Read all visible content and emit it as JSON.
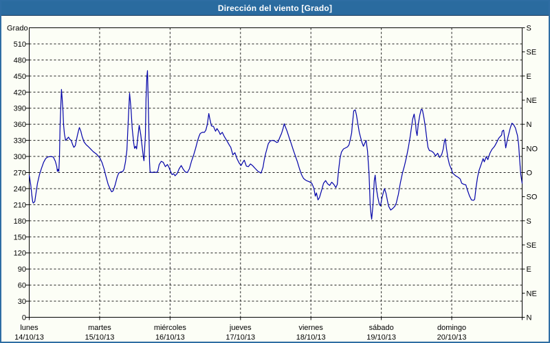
{
  "window": {
    "title": "Dirección del viento [Grado]"
  },
  "colors": {
    "titlebar_bg": "#2a6b9f",
    "titlebar_border": "#16395a",
    "window_border": "#2e6da3",
    "background": "#fcfef6",
    "line": "#0000a8",
    "grid": "#1c1c1c",
    "frame": "#000000",
    "text": "#000000",
    "title_text": "#ffffff"
  },
  "chart_data": {
    "type": "line",
    "title": "Dirección del viento [Grado]",
    "grid": "dashed",
    "y_axis_left": {
      "title": "Grado",
      "min": 0,
      "max": 540,
      "tick_step": 30,
      "highest_label": 510
    },
    "y_axis_right": {
      "tick_step": 45,
      "labels_top_to_bottom": [
        "S",
        "SE",
        "E",
        "NE",
        "N",
        "NO",
        "O",
        "SO",
        "S",
        "SE",
        "E",
        "NE",
        "N"
      ]
    },
    "x_axis": {
      "hours_total": 168,
      "hours_per_day": 24,
      "days": [
        {
          "name": "lunes",
          "date": "14/10/13"
        },
        {
          "name": "martes",
          "date": "15/10/13"
        },
        {
          "name": "miércoles",
          "date": "16/10/13"
        },
        {
          "name": "jueves",
          "date": "17/10/13"
        },
        {
          "name": "viernes",
          "date": "18/10/13"
        },
        {
          "name": "sábado",
          "date": "19/10/13"
        },
        {
          "name": "domingo",
          "date": "20/10/13"
        }
      ]
    },
    "series": [
      {
        "name": "Dirección del viento",
        "unit": "Grado",
        "color": "#0000a8",
        "points": [
          [
            0,
            265
          ],
          [
            0.5,
            248
          ],
          [
            0.9,
            228
          ],
          [
            1.2,
            215
          ],
          [
            1.4,
            213
          ],
          [
            1.9,
            216
          ],
          [
            2.1,
            224
          ],
          [
            2.8,
            250
          ],
          [
            3.5,
            266
          ],
          [
            4.2,
            278
          ],
          [
            4.9,
            289
          ],
          [
            5.6,
            296
          ],
          [
            6.3,
            299
          ],
          [
            7.3,
            300
          ],
          [
            8.2,
            299
          ],
          [
            8.9,
            291
          ],
          [
            9.4,
            281
          ],
          [
            9.6,
            272
          ],
          [
            9.8,
            276
          ],
          [
            10.1,
            272
          ],
          [
            10.3,
            300
          ],
          [
            10.5,
            352
          ],
          [
            10.8,
            400
          ],
          [
            11,
            425
          ],
          [
            11.2,
            410
          ],
          [
            11.5,
            385
          ],
          [
            11.7,
            360
          ],
          [
            12,
            342
          ],
          [
            12.4,
            330
          ],
          [
            12.9,
            333
          ],
          [
            13.4,
            336
          ],
          [
            13.8,
            332
          ],
          [
            14.3,
            330
          ],
          [
            14.8,
            322
          ],
          [
            15.2,
            317
          ],
          [
            15.7,
            320
          ],
          [
            16.4,
            339
          ],
          [
            16.9,
            350
          ],
          [
            17.1,
            354
          ],
          [
            17.6,
            347
          ],
          [
            18,
            338
          ],
          [
            18.7,
            327
          ],
          [
            19.4,
            322
          ],
          [
            20.2,
            318
          ],
          [
            20.9,
            314
          ],
          [
            21.8,
            309
          ],
          [
            23,
            304
          ],
          [
            24.1,
            297
          ],
          [
            24.8,
            289
          ],
          [
            25.5,
            277
          ],
          [
            26.2,
            262
          ],
          [
            26.9,
            248
          ],
          [
            27.7,
            238
          ],
          [
            28.1,
            234
          ],
          [
            28.6,
            236
          ],
          [
            29.3,
            247
          ],
          [
            30,
            262
          ],
          [
            30.5,
            269
          ],
          [
            31.2,
            271
          ],
          [
            31.9,
            272
          ],
          [
            32.3,
            276
          ],
          [
            32.8,
            290
          ],
          [
            33.3,
            312
          ],
          [
            33.7,
            360
          ],
          [
            34,
            395
          ],
          [
            34.2,
            418
          ],
          [
            34.7,
            388
          ],
          [
            35.1,
            352
          ],
          [
            35.6,
            326
          ],
          [
            35.9,
            315
          ],
          [
            36.3,
            319
          ],
          [
            36.6,
            314
          ],
          [
            37,
            335
          ],
          [
            37.3,
            350
          ],
          [
            37.5,
            358
          ],
          [
            38,
            341
          ],
          [
            38.4,
            322
          ],
          [
            38.9,
            299
          ],
          [
            39.1,
            292
          ],
          [
            39.6,
            340
          ],
          [
            39.8,
            408
          ],
          [
            40.1,
            448
          ],
          [
            40.3,
            460
          ],
          [
            40.5,
            420
          ],
          [
            40.8,
            345
          ],
          [
            41,
            290
          ],
          [
            41.2,
            271
          ],
          [
            41.9,
            270
          ],
          [
            42.6,
            271
          ],
          [
            43.3,
            270
          ],
          [
            43.8,
            272
          ],
          [
            44.3,
            285
          ],
          [
            45,
            291
          ],
          [
            45.7,
            289
          ],
          [
            46.4,
            281
          ],
          [
            47.1,
            285
          ],
          [
            47.6,
            280
          ],
          [
            48,
            274
          ],
          [
            48.7,
            266
          ],
          [
            49.2,
            268
          ],
          [
            49.7,
            264
          ],
          [
            50.4,
            268
          ],
          [
            51.1,
            277
          ],
          [
            51.8,
            283
          ],
          [
            52.5,
            276
          ],
          [
            53.2,
            271
          ],
          [
            53.9,
            270
          ],
          [
            54.6,
            277
          ],
          [
            55.3,
            291
          ],
          [
            56,
            302
          ],
          [
            56.7,
            315
          ],
          [
            57.4,
            330
          ],
          [
            57.9,
            338
          ],
          [
            58.3,
            343
          ],
          [
            59,
            345
          ],
          [
            59.7,
            345
          ],
          [
            60.2,
            349
          ],
          [
            60.7,
            360
          ],
          [
            61.2,
            380
          ],
          [
            61.6,
            369
          ],
          [
            62.1,
            357
          ],
          [
            62.8,
            356
          ],
          [
            63.5,
            347
          ],
          [
            64,
            352
          ],
          [
            64.7,
            346
          ],
          [
            65.1,
            341
          ],
          [
            65.8,
            345
          ],
          [
            66.5,
            337
          ],
          [
            67.5,
            328
          ],
          [
            68.2,
            321
          ],
          [
            68.7,
            317
          ],
          [
            69.4,
            303
          ],
          [
            70.1,
            307
          ],
          [
            70.8,
            296
          ],
          [
            71.5,
            288
          ],
          [
            72.2,
            283
          ],
          [
            72.9,
            290
          ],
          [
            73.3,
            293
          ],
          [
            74,
            282
          ],
          [
            74.7,
            281
          ],
          [
            75.4,
            286
          ],
          [
            76.1,
            283
          ],
          [
            77.1,
            277
          ],
          [
            78,
            272
          ],
          [
            79,
            269
          ],
          [
            79.7,
            280
          ],
          [
            80.1,
            294
          ],
          [
            80.6,
            306
          ],
          [
            81.1,
            316
          ],
          [
            81.5,
            324
          ],
          [
            82.2,
            329
          ],
          [
            82.9,
            330
          ],
          [
            83.6,
            329
          ],
          [
            84.4,
            326
          ],
          [
            84.8,
            327
          ],
          [
            85.3,
            334
          ],
          [
            86,
            343
          ],
          [
            86.5,
            352
          ],
          [
            86.9,
            361
          ],
          [
            87.4,
            354
          ],
          [
            87.9,
            347
          ],
          [
            88.6,
            335
          ],
          [
            89.3,
            324
          ],
          [
            90,
            312
          ],
          [
            90.7,
            301
          ],
          [
            91.4,
            290
          ],
          [
            92.1,
            277
          ],
          [
            92.8,
            266
          ],
          [
            93.5,
            259
          ],
          [
            94.4,
            255
          ],
          [
            95.4,
            253
          ],
          [
            96.3,
            250
          ],
          [
            97,
            241
          ],
          [
            97.5,
            226
          ],
          [
            97.9,
            232
          ],
          [
            98.4,
            219
          ],
          [
            98.9,
            223
          ],
          [
            99.6,
            236
          ],
          [
            100.3,
            250
          ],
          [
            101,
            255
          ],
          [
            101.7,
            249
          ],
          [
            102.4,
            246
          ],
          [
            103.1,
            252
          ],
          [
            103.8,
            248
          ],
          [
            104.5,
            242
          ],
          [
            105,
            248
          ],
          [
            105.4,
            272
          ],
          [
            105.9,
            296
          ],
          [
            106.4,
            308
          ],
          [
            107.1,
            314
          ],
          [
            107.8,
            316
          ],
          [
            108.5,
            318
          ],
          [
            109,
            322
          ],
          [
            109.4,
            331
          ],
          [
            109.9,
            344
          ],
          [
            110.1,
            358
          ],
          [
            110.4,
            374
          ],
          [
            110.6,
            385
          ],
          [
            111.1,
            387
          ],
          [
            111.5,
            378
          ],
          [
            112,
            361
          ],
          [
            112.5,
            345
          ],
          [
            113,
            334
          ],
          [
            113.4,
            326
          ],
          [
            113.9,
            319
          ],
          [
            114.4,
            325
          ],
          [
            114.8,
            330
          ],
          [
            115.3,
            310
          ],
          [
            115.5,
            294
          ],
          [
            115.8,
            270
          ],
          [
            116,
            240
          ],
          [
            116.2,
            210
          ],
          [
            116.5,
            192
          ],
          [
            116.7,
            183
          ],
          [
            117.2,
            212
          ],
          [
            117.6,
            255
          ],
          [
            117.9,
            265
          ],
          [
            118.3,
            241
          ],
          [
            118.8,
            224
          ],
          [
            119.3,
            211
          ],
          [
            119.7,
            208
          ],
          [
            120.2,
            222
          ],
          [
            120.7,
            233
          ],
          [
            121.1,
            240
          ],
          [
            121.6,
            231
          ],
          [
            122.1,
            217
          ],
          [
            122.5,
            207
          ],
          [
            123.2,
            200
          ],
          [
            123.9,
            203
          ],
          [
            124.6,
            207
          ],
          [
            125.1,
            213
          ],
          [
            125.8,
            229
          ],
          [
            126.5,
            251
          ],
          [
            127.2,
            269
          ],
          [
            127.9,
            283
          ],
          [
            128.6,
            299
          ],
          [
            129.3,
            319
          ],
          [
            129.8,
            336
          ],
          [
            130.3,
            355
          ],
          [
            130.7,
            370
          ],
          [
            131.2,
            379
          ],
          [
            131.7,
            360
          ],
          [
            131.9,
            347
          ],
          [
            132.2,
            339
          ],
          [
            132.6,
            360
          ],
          [
            133.1,
            377
          ],
          [
            133.6,
            388
          ],
          [
            134,
            387
          ],
          [
            134.5,
            373
          ],
          [
            135,
            355
          ],
          [
            135.4,
            337
          ],
          [
            135.9,
            317
          ],
          [
            136.4,
            311
          ],
          [
            137.1,
            310
          ],
          [
            137.8,
            307
          ],
          [
            138.5,
            301
          ],
          [
            139.2,
            306
          ],
          [
            139.9,
            298
          ],
          [
            140.6,
            304
          ],
          [
            141.1,
            314
          ],
          [
            141.5,
            328
          ],
          [
            141.8,
            333
          ],
          [
            142.2,
            315
          ],
          [
            142.7,
            297
          ],
          [
            143.2,
            285
          ],
          [
            143.9,
            276
          ],
          [
            144.3,
            269
          ],
          [
            145.3,
            264
          ],
          [
            146.2,
            261
          ],
          [
            146.9,
            258
          ],
          [
            147.4,
            250
          ],
          [
            148.1,
            248
          ],
          [
            148.8,
            247
          ],
          [
            149.3,
            238
          ],
          [
            150,
            227
          ],
          [
            150.7,
            219
          ],
          [
            151.4,
            218
          ],
          [
            151.8,
            220
          ],
          [
            152.3,
            243
          ],
          [
            152.8,
            261
          ],
          [
            153.3,
            274
          ],
          [
            154,
            285
          ],
          [
            154.7,
            296
          ],
          [
            155.1,
            290
          ],
          [
            155.8,
            300
          ],
          [
            156.3,
            294
          ],
          [
            157,
            306
          ],
          [
            157.7,
            313
          ],
          [
            158.6,
            319
          ],
          [
            159.3,
            326
          ],
          [
            160,
            334
          ],
          [
            161,
            340
          ],
          [
            161.2,
            347
          ],
          [
            161.7,
            349
          ],
          [
            162.1,
            331
          ],
          [
            162.4,
            316
          ],
          [
            162.8,
            327
          ],
          [
            163.3,
            339
          ],
          [
            164,
            354
          ],
          [
            164.5,
            362
          ],
          [
            165,
            360
          ],
          [
            165.7,
            353
          ],
          [
            166.1,
            345
          ],
          [
            166.4,
            339
          ],
          [
            166.8,
            322
          ],
          [
            167.1,
            297
          ],
          [
            167.5,
            267
          ],
          [
            168,
            250
          ]
        ]
      }
    ]
  }
}
